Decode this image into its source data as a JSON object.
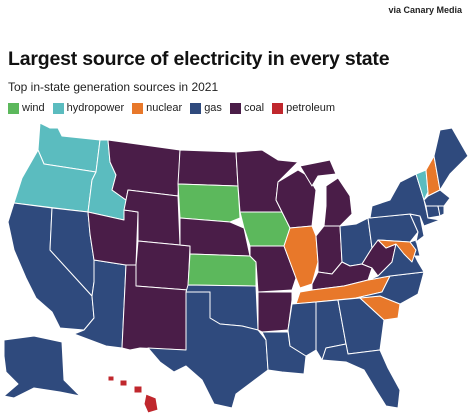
{
  "credit": "via Canary Media",
  "title": "Largest source of electricity in every state",
  "subtitle": "Top in-state generation sources in 2021",
  "legend": [
    {
      "key": "wind",
      "label": "wind"
    },
    {
      "key": "hydropower",
      "label": "hydropower"
    },
    {
      "key": "nuclear",
      "label": "nuclear"
    },
    {
      "key": "gas",
      "label": "gas"
    },
    {
      "key": "coal",
      "label": "coal"
    },
    {
      "key": "petroleum",
      "label": "petroleum"
    }
  ],
  "colors": {
    "wind": "#5cb85c",
    "hydropower": "#5bbcbf",
    "nuclear": "#e8782a",
    "gas": "#2f4a7d",
    "coal": "#4a1d48",
    "petroleum": "#c0272d"
  },
  "states": {
    "WA": "hydropower",
    "OR": "hydropower",
    "ID": "hydropower",
    "CA": "gas",
    "NV": "gas",
    "AZ": "gas",
    "UT": "coal",
    "MT": "coal",
    "WY": "coal",
    "CO": "coal",
    "NM": "coal",
    "ND": "coal",
    "SD": "wind",
    "NE": "coal",
    "KS": "wind",
    "OK": "gas",
    "TX": "gas",
    "MN": "coal",
    "IA": "wind",
    "MO": "coal",
    "AR": "coal",
    "LA": "gas",
    "WI": "coal",
    "IL": "nuclear",
    "MI": "coal",
    "IN": "coal",
    "OH": "gas",
    "KY": "coal",
    "TN": "nuclear",
    "MS": "gas",
    "AL": "gas",
    "GA": "gas",
    "FL": "gas",
    "SC": "nuclear",
    "NC": "gas",
    "VA": "gas",
    "WV": "coal",
    "PA": "gas",
    "NY": "gas",
    "VT": "hydropower",
    "NH": "nuclear",
    "ME": "gas",
    "MA": "gas",
    "RI": "gas",
    "CT": "gas",
    "NJ": "gas",
    "DE": "gas",
    "MD": "nuclear",
    "AK": "gas",
    "HI": "petroleum"
  }
}
